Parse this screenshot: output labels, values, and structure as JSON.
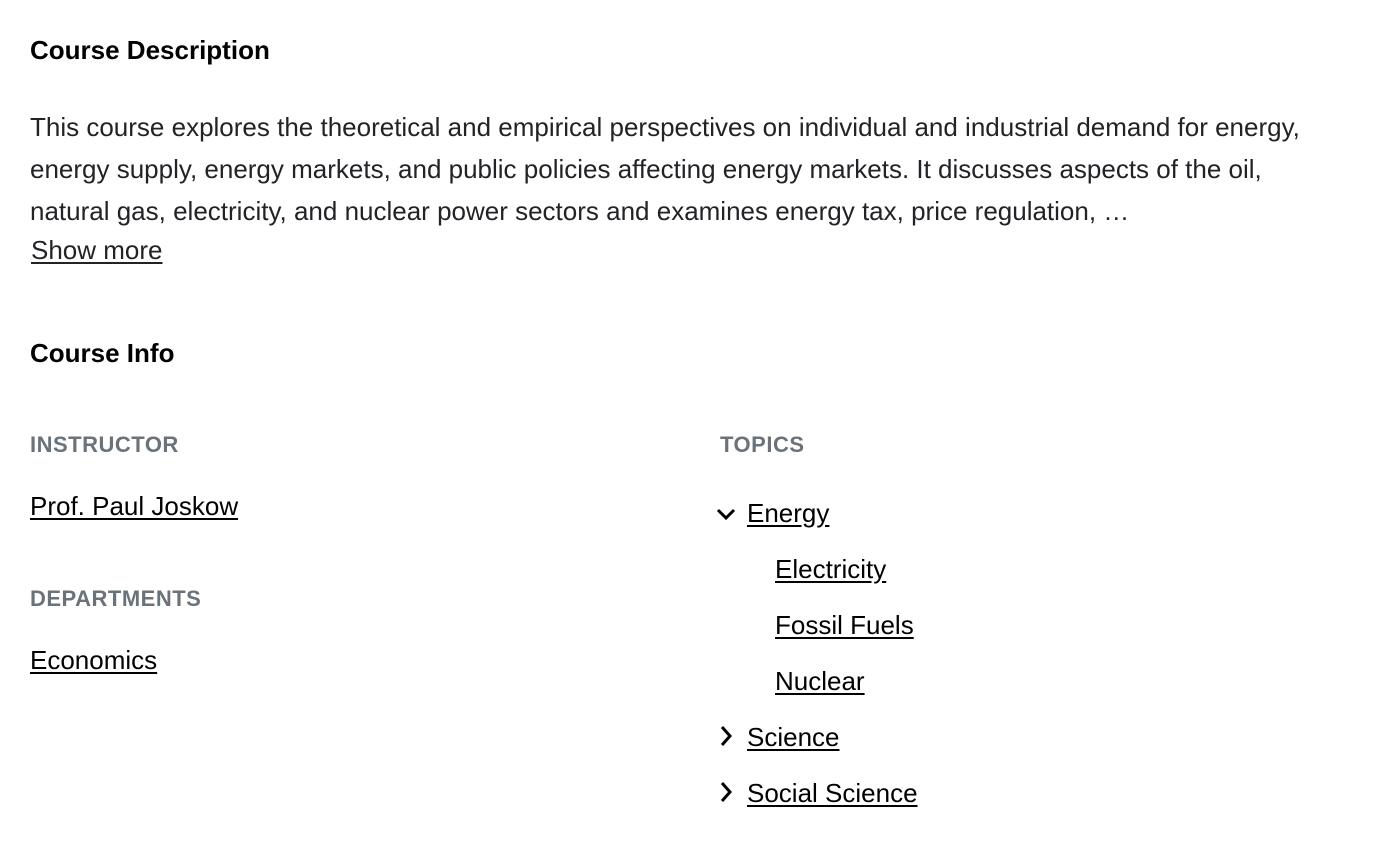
{
  "description": {
    "title": "Course Description",
    "text": "This course explores the theoretical and empirical perspectives on individual and industrial demand for energy, energy supply, energy markets, and public policies affecting energy markets. It discusses aspects of the oil, natural gas, electricity, and nuclear power sectors and examines energy tax, price regulation, …",
    "show_more_label": "Show more"
  },
  "info": {
    "title": "Course Info",
    "instructor_label": "INSTRUCTOR",
    "instructor": "Prof. Paul Joskow",
    "departments_label": "DEPARTMENTS",
    "department": "Economics",
    "topics_label": "TOPICS",
    "topics": [
      {
        "label": "Energy",
        "expanded": true,
        "icon": "chevron-down-icon",
        "children": [
          "Electricity",
          "Fossil Fuels",
          "Nuclear"
        ]
      },
      {
        "label": "Science",
        "expanded": false,
        "icon": "chevron-right-icon"
      },
      {
        "label": "Social Science",
        "expanded": false,
        "icon": "chevron-right-icon"
      }
    ]
  }
}
